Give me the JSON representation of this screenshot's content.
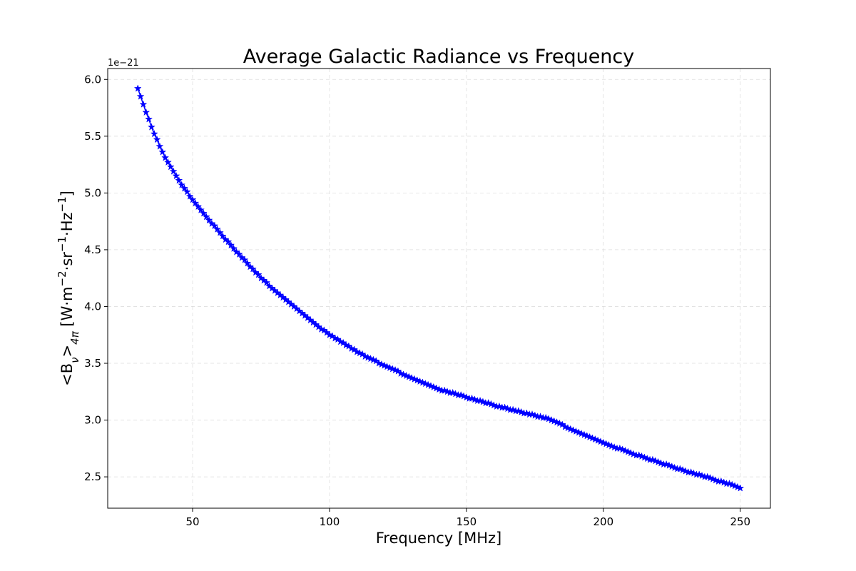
{
  "chart_data": {
    "type": "line",
    "title": "Average Galactic Radiance vs Frequency",
    "x_label": "Frequency [MHz]",
    "y_label": [
      "<B",
      "ν",
      ">",
      "4π",
      " [W·m",
      "−2",
      "·sr",
      "−1",
      "·Hz",
      "−1",
      "]"
    ],
    "y_offset_label": "1e−21",
    "x": [
      30,
      31,
      32,
      33,
      34,
      35,
      36,
      37,
      38,
      39,
      40,
      41,
      42,
      43,
      44,
      45,
      46,
      47,
      48,
      49,
      50,
      51,
      52,
      53,
      54,
      55,
      56,
      57,
      58,
      59,
      60,
      61,
      62,
      63,
      64,
      65,
      66,
      67,
      68,
      69,
      70,
      71,
      72,
      73,
      74,
      75,
      76,
      77,
      78,
      79,
      80,
      81,
      82,
      83,
      84,
      85,
      86,
      87,
      88,
      89,
      90,
      91,
      92,
      93,
      94,
      95,
      96,
      97,
      98,
      99,
      100,
      101,
      102,
      103,
      104,
      105,
      106,
      107,
      108,
      109,
      110,
      111,
      112,
      113,
      114,
      115,
      116,
      117,
      118,
      119,
      120,
      121,
      122,
      123,
      124,
      125,
      126,
      127,
      128,
      129,
      130,
      131,
      132,
      133,
      134,
      135,
      136,
      137,
      138,
      139,
      140,
      141,
      142,
      143,
      144,
      145,
      146,
      147,
      148,
      149,
      150,
      151,
      152,
      153,
      154,
      155,
      156,
      157,
      158,
      159,
      160,
      161,
      162,
      163,
      164,
      165,
      166,
      167,
      168,
      169,
      170,
      171,
      172,
      173,
      174,
      175,
      176,
      177,
      178,
      179,
      180,
      181,
      182,
      183,
      184,
      185,
      186,
      187,
      188,
      189,
      190,
      191,
      192,
      193,
      194,
      195,
      196,
      197,
      198,
      199,
      200,
      201,
      202,
      203,
      204,
      205,
      206,
      207,
      208,
      209,
      210,
      211,
      212,
      213,
      214,
      215,
      216,
      217,
      218,
      219,
      220,
      221,
      222,
      223,
      224,
      225,
      226,
      227,
      228,
      229,
      230,
      231,
      232,
      233,
      234,
      235,
      236,
      237,
      238,
      239,
      240,
      241,
      242,
      243,
      244,
      245,
      246,
      247,
      248,
      249,
      250
    ],
    "series": [
      {
        "color": "#0000ff",
        "marker": "star",
        "values": [
          5.92,
          5.85,
          5.78,
          5.71,
          5.65,
          5.58,
          5.52,
          5.47,
          5.41,
          5.36,
          5.31,
          5.27,
          5.23,
          5.19,
          5.15,
          5.11,
          5.07,
          5.04,
          5.01,
          4.97,
          4.94,
          4.91,
          4.88,
          4.85,
          4.82,
          4.79,
          4.76,
          4.73,
          4.71,
          4.68,
          4.65,
          4.62,
          4.59,
          4.57,
          4.54,
          4.51,
          4.48,
          4.46,
          4.43,
          4.41,
          4.38,
          4.35,
          4.33,
          4.3,
          4.28,
          4.25,
          4.23,
          4.21,
          4.18,
          4.16,
          4.14,
          4.12,
          4.1,
          4.08,
          4.06,
          4.04,
          4.02,
          4.0,
          3.98,
          3.96,
          3.94,
          3.92,
          3.9,
          3.88,
          3.86,
          3.84,
          3.82,
          3.8,
          3.79,
          3.77,
          3.75,
          3.74,
          3.72,
          3.71,
          3.69,
          3.68,
          3.66,
          3.65,
          3.63,
          3.62,
          3.6,
          3.59,
          3.58,
          3.56,
          3.55,
          3.54,
          3.53,
          3.52,
          3.5,
          3.49,
          3.48,
          3.47,
          3.46,
          3.45,
          3.44,
          3.43,
          3.41,
          3.4,
          3.39,
          3.38,
          3.37,
          3.36,
          3.35,
          3.34,
          3.33,
          3.32,
          3.31,
          3.3,
          3.29,
          3.28,
          3.27,
          3.26,
          3.26,
          3.25,
          3.24,
          3.24,
          3.23,
          3.22,
          3.22,
          3.21,
          3.2,
          3.19,
          3.19,
          3.18,
          3.17,
          3.17,
          3.16,
          3.15,
          3.15,
          3.14,
          3.13,
          3.12,
          3.12,
          3.11,
          3.11,
          3.1,
          3.09,
          3.09,
          3.08,
          3.08,
          3.07,
          3.06,
          3.06,
          3.05,
          3.05,
          3.04,
          3.03,
          3.03,
          3.02,
          3.02,
          3.01,
          3.0,
          2.99,
          2.98,
          2.97,
          2.96,
          2.94,
          2.93,
          2.92,
          2.91,
          2.9,
          2.89,
          2.88,
          2.87,
          2.86,
          2.85,
          2.84,
          2.83,
          2.82,
          2.81,
          2.8,
          2.79,
          2.78,
          2.77,
          2.76,
          2.75,
          2.75,
          2.74,
          2.73,
          2.72,
          2.71,
          2.7,
          2.69,
          2.69,
          2.68,
          2.67,
          2.66,
          2.65,
          2.65,
          2.64,
          2.63,
          2.62,
          2.61,
          2.61,
          2.6,
          2.59,
          2.58,
          2.57,
          2.57,
          2.56,
          2.55,
          2.54,
          2.54,
          2.53,
          2.52,
          2.52,
          2.51,
          2.5,
          2.5,
          2.49,
          2.48,
          2.47,
          2.46,
          2.46,
          2.45,
          2.44,
          2.44,
          2.43,
          2.42,
          2.41,
          2.4
        ]
      }
    ],
    "xlim": [
      19,
      261
    ],
    "ylim": [
      2.224,
      6.096
    ],
    "xticks": [
      50,
      100,
      150,
      200,
      250
    ],
    "yticks": [
      2.5,
      {
        "value": 3,
        "label": "3.0"
      },
      3.5,
      {
        "value": 4,
        "label": "4.0"
      },
      4.5,
      {
        "value": 5,
        "label": "5.0"
      },
      5.5,
      {
        "value": 6,
        "label": "6.0"
      }
    ],
    "grid": true
  }
}
